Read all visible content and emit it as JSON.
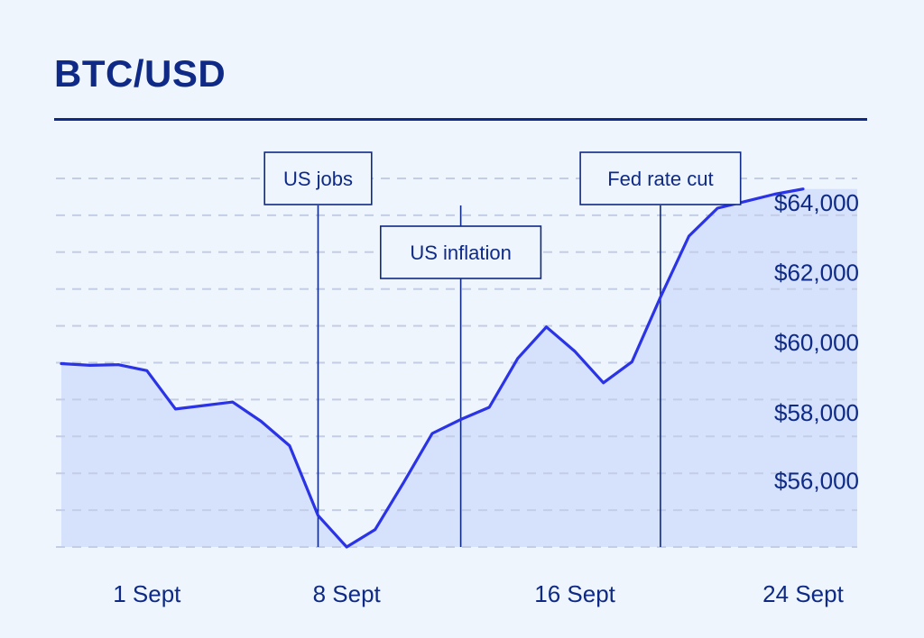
{
  "title": "BTC/USD",
  "colors": {
    "line": "#2a33e6",
    "area": "#d6e1fb",
    "text": "#0e2a86",
    "grid": "#c4cde6",
    "background": "#eef5fc"
  },
  "chart_data": {
    "type": "area",
    "title": "BTC/USD",
    "xlabel": "",
    "ylabel": "",
    "ylim": [
      54000,
      64500
    ],
    "x": [
      "28 Aug",
      "29 Aug",
      "30 Aug",
      "31 Aug",
      "1 Sept",
      "2 Sept",
      "3 Sept",
      "4 Sept",
      "5 Sept",
      "6 Sept",
      "7 Sept",
      "8 Sept",
      "9 Sept",
      "10 Sept",
      "11 Sept",
      "12 Sept",
      "13 Sept",
      "14 Sept",
      "15 Sept",
      "16 Sept",
      "17 Sept",
      "18 Sept",
      "19 Sept",
      "20 Sept",
      "21 Sept",
      "22 Sept",
      "23 Sept"
    ],
    "values": [
      59250,
      59200,
      59220,
      59050,
      57950,
      58050,
      58150,
      57600,
      56900,
      54900,
      54000,
      54500,
      55850,
      57250,
      57650,
      58000,
      59400,
      60300,
      59600,
      58700,
      59300,
      61150,
      62900,
      63700,
      63900,
      64100,
      64250
    ],
    "yticks": [
      "$56,000",
      "$58,000",
      "$60,000",
      "$62,000",
      "$64,000"
    ],
    "ytick_values": [
      55900,
      57850,
      59850,
      61850,
      63850
    ],
    "xticks": [
      "1 Sept",
      "8 Sept",
      "16 Sept",
      "24 Sept"
    ],
    "xtick_values": [
      "31 Aug",
      "7 Sept",
      "15 Sept",
      "23 Sept"
    ],
    "grid": true,
    "annotations": [
      {
        "label": "US jobs",
        "x": "6 Sept"
      },
      {
        "label": "US inflation",
        "x": "11 Sept"
      },
      {
        "label": "Fed rate cut",
        "x": "18 Sept"
      }
    ]
  }
}
